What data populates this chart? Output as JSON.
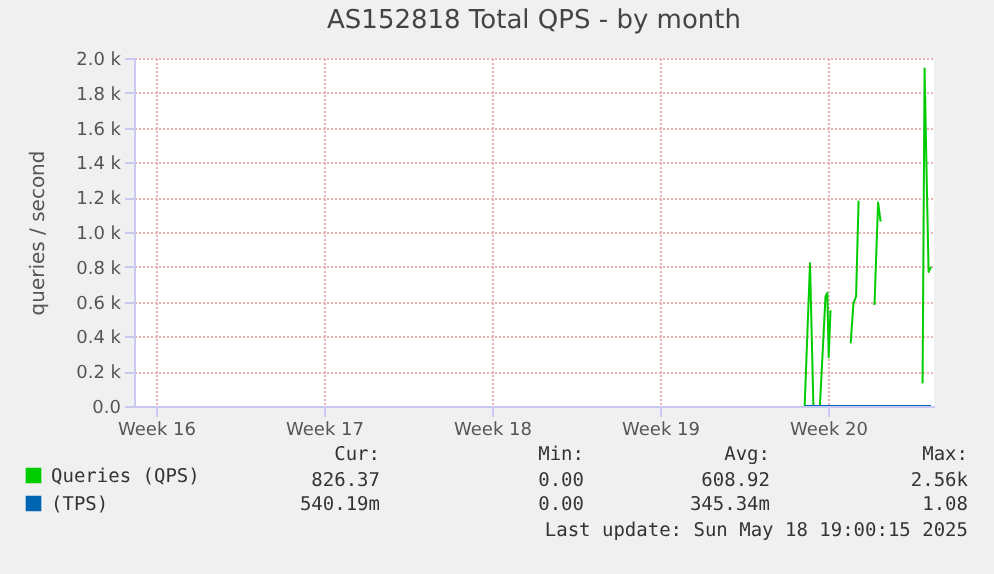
{
  "chart_data": {
    "type": "line",
    "title": "AS152818 Total QPS - by month",
    "ylabel": "queries / second",
    "xlim": [
      "2025-04-15T14:00",
      "2025-05-18T22:00"
    ],
    "xticks": [
      {
        "value": "2025-04-16T12:00",
        "label": "Week 16"
      },
      {
        "value": "2025-04-23T12:00",
        "label": "Week 17"
      },
      {
        "value": "2025-04-30T12:00",
        "label": "Week 18"
      },
      {
        "value": "2025-05-07T12:00",
        "label": "Week 19"
      },
      {
        "value": "2025-05-14T12:00",
        "label": "Week 20"
      }
    ],
    "ylim": [
      0,
      2000
    ],
    "yticks": [
      {
        "value": 0,
        "label": "0.0"
      },
      {
        "value": 200,
        "label": "0.2 k"
      },
      {
        "value": 400,
        "label": "0.4 k"
      },
      {
        "value": 600,
        "label": "0.6 k"
      },
      {
        "value": 800,
        "label": "0.8 k"
      },
      {
        "value": 1000,
        "label": "1.0 k"
      },
      {
        "value": 1200,
        "label": "1.2 k"
      },
      {
        "value": 1400,
        "label": "1.4 k"
      },
      {
        "value": 1600,
        "label": "1.6 k"
      },
      {
        "value": 1800,
        "label": "1.8 k"
      },
      {
        "value": 2000,
        "label": "2.0 k"
      }
    ],
    "grid": true,
    "legend": "bottom",
    "series": [
      {
        "name": "Queries (QPS)",
        "color": "#00cc00",
        "x": [
          "2025-05-13T12:40",
          "2025-05-13T18:00",
          "2025-05-13T21:25",
          "2025-05-14T03:55",
          "2025-05-14T09:30",
          "2025-05-14T11:20",
          "2025-05-14T12:40",
          "2025-05-14T14:30",
          "2025-05-15T04:50",
          "2025-05-15T10:40",
          "2025-05-15T13:25",
          "2025-05-15T16:05",
          "2025-05-15T18:35",
          "2025-05-16T06:00",
          "2025-05-16T10:30",
          "2025-05-16T14:05",
          "2025-05-16T16:35",
          "2025-05-17T07:10",
          "2025-05-18T10:35",
          "2025-05-18T12:35",
          "2025-05-18T14:35",
          "2025-05-18T16:35",
          "2025-05-18T19:00"
        ],
        "values": [
          0,
          820,
          0,
          0,
          630,
          650,
          280,
          550,
          null,
          360,
          590,
          630,
          1180,
          null,
          580,
          1170,
          1060,
          null,
          130,
          1940,
          1340,
          770,
          800
        ]
      },
      {
        "name": "(TPS)",
        "color": "#0066b3",
        "x": [
          "2025-05-13T12:40",
          "2025-05-18T19:00"
        ],
        "values": [
          0,
          0
        ]
      }
    ],
    "annotations": [
      "Cur:",
      "Min:",
      "Avg:",
      "Max:",
      "826.37",
      "0.00",
      "608.92",
      "2.56k",
      "540.19m",
      "0.00",
      "345.34m",
      "1.08",
      "Last update: Sun May 18 19:00:15 2025"
    ]
  }
}
